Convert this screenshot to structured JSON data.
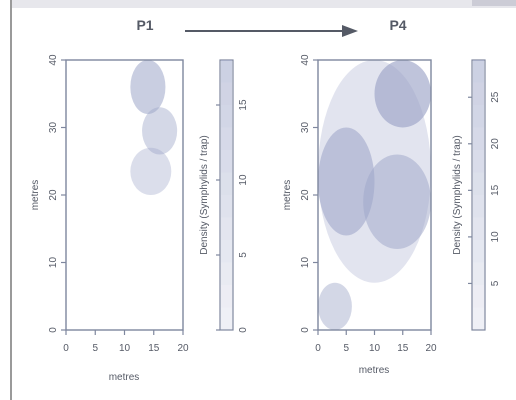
{
  "header": {
    "left_label": "P1",
    "right_label": "P4"
  },
  "colors": {
    "fill_base": "#9ea6c8",
    "axis": "#7e879e",
    "text": "#555a66"
  },
  "chart_data": [
    {
      "type": "heatmap",
      "xlabel": "metres",
      "ylabel": "metres",
      "colorbar_label": "Density (Symphylids / trap)",
      "xlim": [
        0,
        20
      ],
      "ylim": [
        0,
        40
      ],
      "x_ticks": [
        0,
        5,
        10,
        15,
        20
      ],
      "y_ticks": [
        0,
        10,
        20,
        30,
        40
      ],
      "colorbar_range": [
        0,
        18
      ],
      "colorbar_ticks": [
        0,
        5,
        10,
        15
      ],
      "patches": [
        {
          "x": [
            11,
            17
          ],
          "y": [
            32,
            40
          ],
          "density": 12
        },
        {
          "x": [
            13,
            19
          ],
          "y": [
            26,
            33
          ],
          "density": 9
        },
        {
          "x": [
            11,
            18
          ],
          "y": [
            20,
            27
          ],
          "density": 7
        }
      ]
    },
    {
      "type": "heatmap",
      "xlabel": "metres",
      "ylabel": "metres",
      "colorbar_label": "Density (Symphylids / trap)",
      "xlim": [
        0,
        20
      ],
      "ylim": [
        0,
        40
      ],
      "x_ticks": [
        0,
        5,
        10,
        15,
        20
      ],
      "y_ticks": [
        0,
        10,
        20,
        30,
        40
      ],
      "colorbar_range": [
        0,
        29
      ],
      "colorbar_ticks": [
        5,
        10,
        15,
        20,
        25
      ],
      "patches": [
        {
          "x": [
            10,
            20
          ],
          "y": [
            30,
            40
          ],
          "density": 24
        },
        {
          "x": [
            0,
            10
          ],
          "y": [
            14,
            30
          ],
          "density": 20
        },
        {
          "x": [
            8,
            20
          ],
          "y": [
            12,
            26
          ],
          "density": 17
        },
        {
          "x": [
            0,
            6
          ],
          "y": [
            0,
            7
          ],
          "density": 15
        },
        {
          "x": [
            0,
            20
          ],
          "y": [
            7,
            40
          ],
          "density": 8
        }
      ]
    }
  ]
}
